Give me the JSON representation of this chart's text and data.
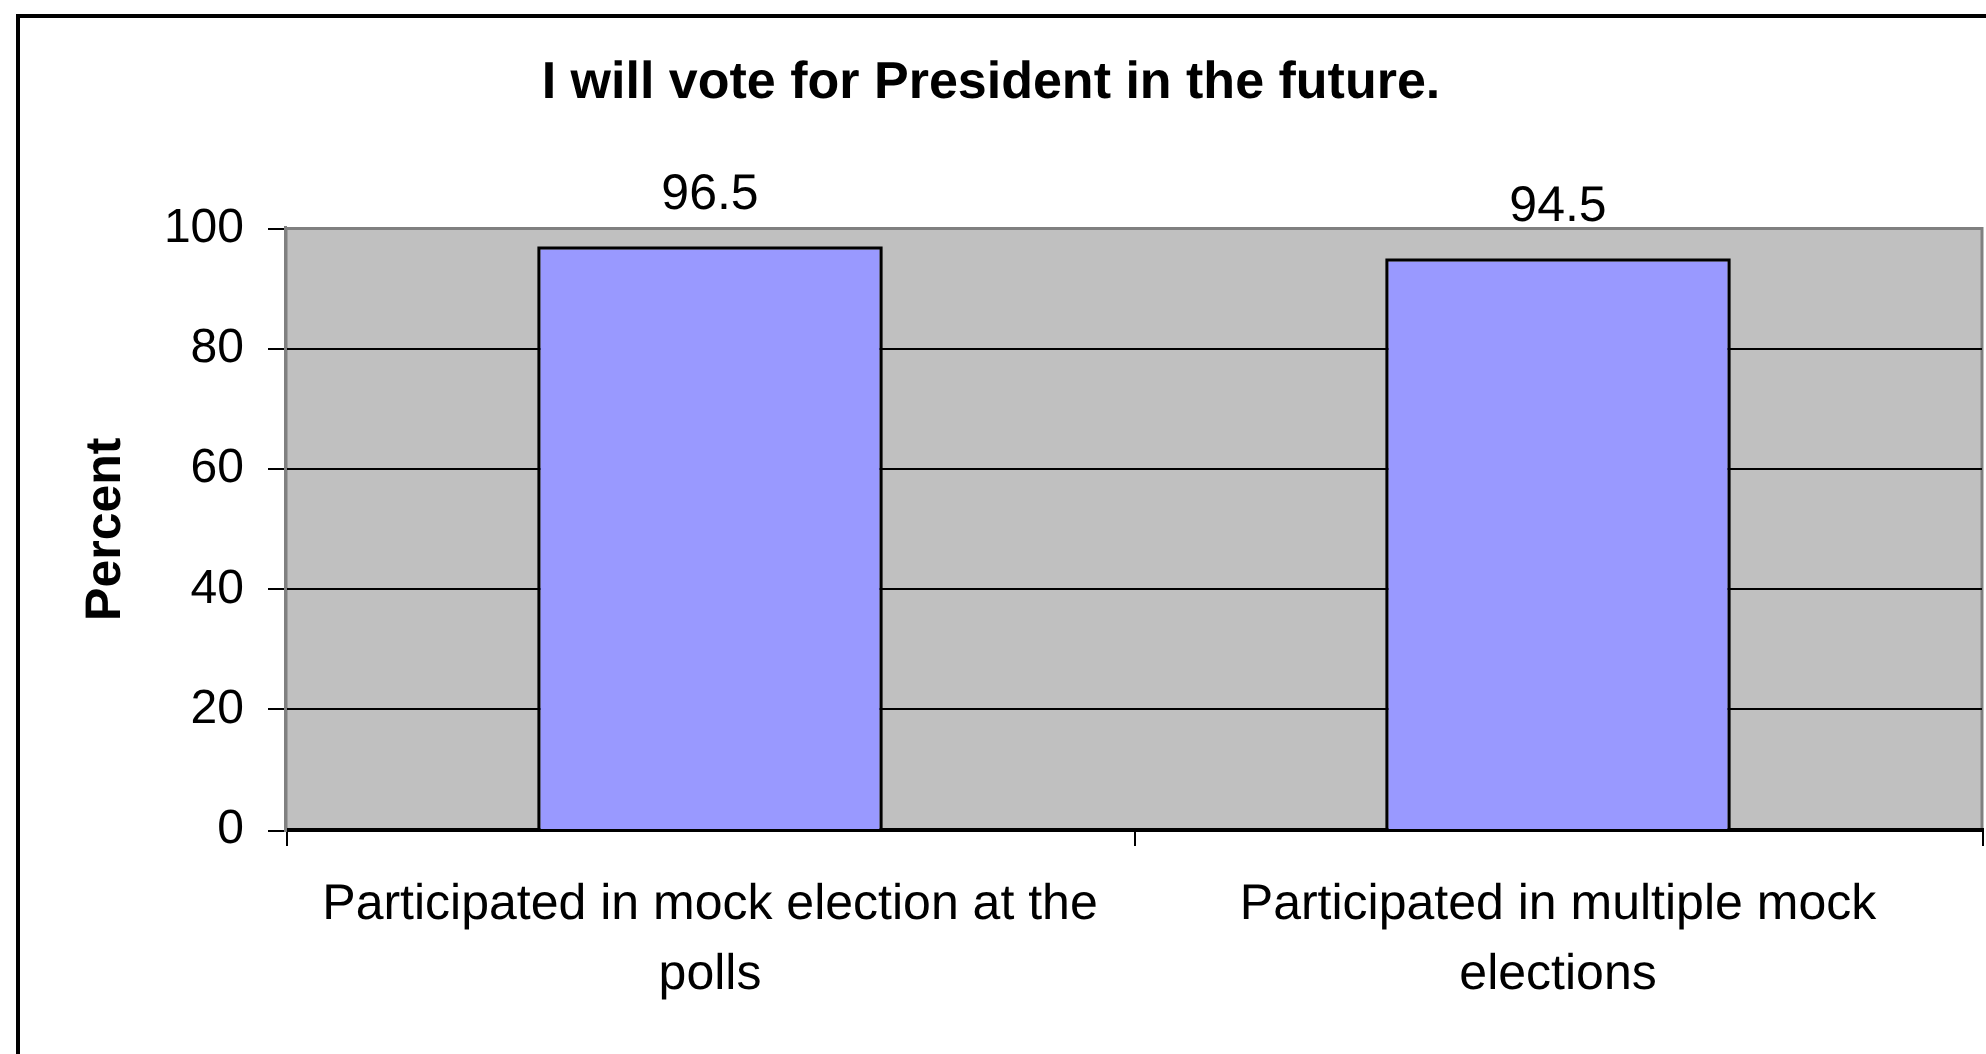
{
  "chart_data": {
    "type": "bar",
    "title": "I will vote for President in the future.",
    "ylabel": "Percent",
    "categories": [
      "Participated in mock election at the polls",
      "Participated in multiple mock elections"
    ],
    "values": [
      96.5,
      94.5
    ],
    "color": "#9999ff",
    "ylim": [
      0,
      100
    ],
    "yticks": [
      0,
      20,
      40,
      60,
      80,
      100
    ],
    "grid": "y",
    "data_labels": true
  }
}
